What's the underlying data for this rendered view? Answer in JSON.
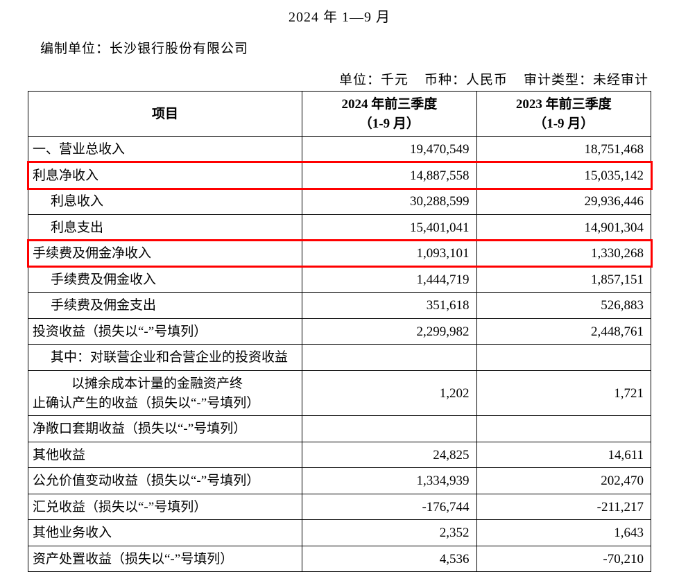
{
  "header": {
    "period_title": "2024 年 1—9 月",
    "org_label": "编制单位：长沙银行股份有限公司",
    "meta_unit": "单位：千元",
    "meta_currency": "币种：人民币",
    "meta_audit": "审计类型：未经审计"
  },
  "table": {
    "columns": {
      "item": "项目",
      "col2024_l1": "2024 年前三季度",
      "col2024_l2": "（1-9 月）",
      "col2023_l1": "2023 年前三季度",
      "col2023_l2": "（1-9 月）"
    },
    "col_widths": {
      "item": "44%",
      "c1": "28%",
      "c2": "28%"
    },
    "highlight_color": "#ff0000",
    "rows": [
      {
        "label": "一、营业总收入",
        "indent": 0,
        "v2024": "19,470,549",
        "v2023": "18,751,468",
        "highlight": false
      },
      {
        "label": "利息净收入",
        "indent": 0,
        "v2024": "14,887,558",
        "v2023": "15,035,142",
        "highlight": true
      },
      {
        "label": "利息收入",
        "indent": 1,
        "v2024": "30,288,599",
        "v2023": "29,936,446",
        "highlight": false
      },
      {
        "label": "利息支出",
        "indent": 1,
        "v2024": "15,401,041",
        "v2023": "14,901,304",
        "highlight": false
      },
      {
        "label": "手续费及佣金净收入",
        "indent": 0,
        "v2024": "1,093,101",
        "v2023": "1,330,268",
        "highlight": true
      },
      {
        "label": "手续费及佣金收入",
        "indent": 1,
        "v2024": "1,444,719",
        "v2023": "1,857,151",
        "highlight": false
      },
      {
        "label": "手续费及佣金支出",
        "indent": 1,
        "v2024": "351,618",
        "v2023": "526,883",
        "highlight": false
      },
      {
        "label": "投资收益（损失以“-”号填列）",
        "indent": 0,
        "v2024": "2,299,982",
        "v2023": "2,448,761",
        "highlight": false
      },
      {
        "label": "其中：对联营企业和合营企业的投资收益",
        "indent": 1,
        "v2024": "",
        "v2023": "",
        "highlight": false
      },
      {
        "label_lines": [
          "以摊余成本计量的金融资产终",
          "止确认产生的收益（损失以“-”号填列）"
        ],
        "indent": 2,
        "multi_align_second": 0,
        "v2024": "1,202",
        "v2023": "1,721",
        "highlight": false
      },
      {
        "label": "净敞口套期收益（损失以“-”号填列）",
        "indent": 0,
        "v2024": "",
        "v2023": "",
        "highlight": false
      },
      {
        "label": "其他收益",
        "indent": 0,
        "v2024": "24,825",
        "v2023": "14,611",
        "highlight": false
      },
      {
        "label": "公允价值变动收益（损失以“-”号填列）",
        "indent": 0,
        "v2024": "1,334,939",
        "v2023": "202,470",
        "highlight": false
      },
      {
        "label": "汇兑收益（损失以“-”号填列）",
        "indent": 0,
        "v2024": "-176,744",
        "v2023": "-211,217",
        "highlight": false
      },
      {
        "label": "其他业务收入",
        "indent": 0,
        "v2024": "2,352",
        "v2023": "1,643",
        "highlight": false
      },
      {
        "label": "资产处置收益（损失以“-”号填列）",
        "indent": 0,
        "v2024": "4,536",
        "v2023": "-70,210",
        "highlight": false
      }
    ]
  }
}
